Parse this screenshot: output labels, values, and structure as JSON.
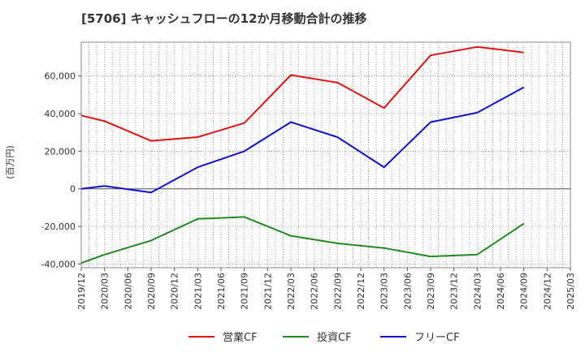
{
  "chart_data": {
    "type": "line",
    "title": "[5706]  キャッシュフローの12か月移動合計の推移",
    "ylabel": "(百万円)",
    "xlabel": "",
    "ylim": [
      -42000,
      78000
    ],
    "yticks": [
      -40000,
      -20000,
      0,
      20000,
      40000,
      60000
    ],
    "ytick_labels": [
      "-40,000",
      "-20,000",
      "0",
      "20,000",
      "40,000",
      "60,000"
    ],
    "x_tick_labels": [
      "2019/12",
      "2020/03",
      "2020/06",
      "2020/09",
      "2020/12",
      "2021/03",
      "2021/06",
      "2021/09",
      "2021/12",
      "2022/03",
      "2022/06",
      "2022/09",
      "2022/12",
      "2023/03",
      "2023/06",
      "2023/09",
      "2023/12",
      "2024/03",
      "2024/06",
      "2024/09",
      "2024/12",
      "2025/03"
    ],
    "grid": true,
    "legend_position": "bottom",
    "series": [
      {
        "name": "営業CF",
        "color": "#dd1111",
        "points": [
          {
            "x": "2019/12",
            "y": 39000
          },
          {
            "x": "2020/03",
            "y": 36000
          },
          {
            "x": "2020/09",
            "y": 25500
          },
          {
            "x": "2021/03",
            "y": 27500
          },
          {
            "x": "2021/09",
            "y": 35000
          },
          {
            "x": "2022/03",
            "y": 60500
          },
          {
            "x": "2022/09",
            "y": 56500
          },
          {
            "x": "2023/03",
            "y": 43000
          },
          {
            "x": "2023/09",
            "y": 71000
          },
          {
            "x": "2024/03",
            "y": 75500
          },
          {
            "x": "2024/09",
            "y": 72500
          }
        ]
      },
      {
        "name": "投資CF",
        "color": "#228822",
        "points": [
          {
            "x": "2019/12",
            "y": -39500
          },
          {
            "x": "2020/03",
            "y": -35000
          },
          {
            "x": "2020/09",
            "y": -27500
          },
          {
            "x": "2021/03",
            "y": -16000
          },
          {
            "x": "2021/09",
            "y": -15000
          },
          {
            "x": "2022/03",
            "y": -25000
          },
          {
            "x": "2022/09",
            "y": -29000
          },
          {
            "x": "2023/03",
            "y": -31500
          },
          {
            "x": "2023/09",
            "y": -36000
          },
          {
            "x": "2024/03",
            "y": -35000
          },
          {
            "x": "2024/09",
            "y": -18500
          }
        ]
      },
      {
        "name": "フリーCF",
        "color": "#1111cc",
        "points": [
          {
            "x": "2019/12",
            "y": 0
          },
          {
            "x": "2020/03",
            "y": 1500
          },
          {
            "x": "2020/09",
            "y": -2000
          },
          {
            "x": "2021/03",
            "y": 11500
          },
          {
            "x": "2021/09",
            "y": 20000
          },
          {
            "x": "2022/03",
            "y": 35500
          },
          {
            "x": "2022/09",
            "y": 27500
          },
          {
            "x": "2023/03",
            "y": 11500
          },
          {
            "x": "2023/09",
            "y": 35500
          },
          {
            "x": "2024/03",
            "y": 40500
          },
          {
            "x": "2024/09",
            "y": 54000
          }
        ]
      }
    ]
  }
}
